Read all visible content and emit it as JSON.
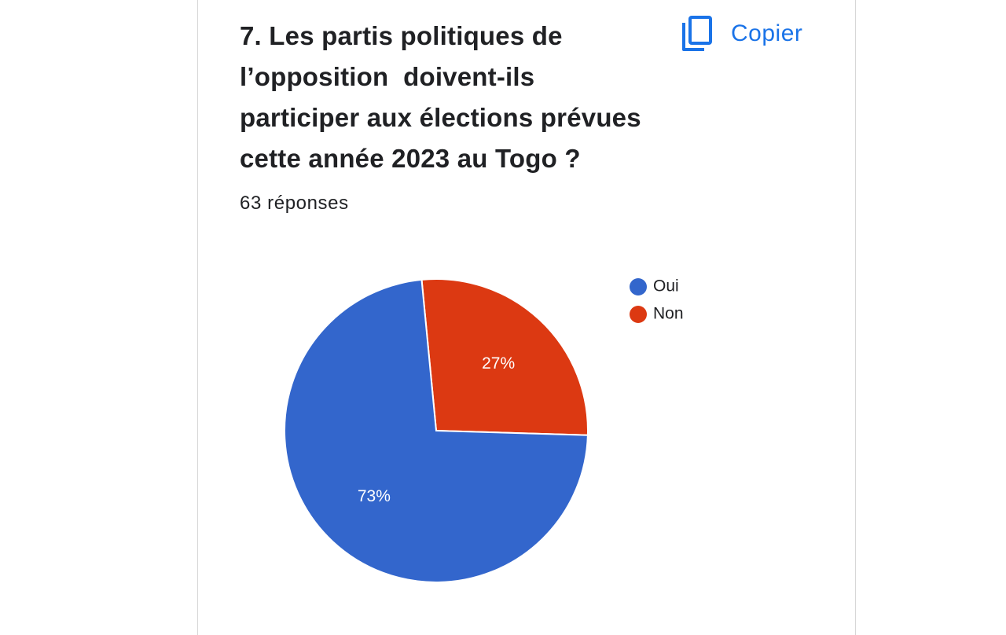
{
  "question": {
    "title": "7. Les partis politiques de l’opposition  doivent-ils participer aux élections prévues cette année 2023 au Togo ?",
    "title_lines": [
      "7. Les partis politiques de",
      "l’opposition  doivent-ils",
      "participer aux élections prévues",
      "cette année 2023 au Togo ?"
    ],
    "responses": "63 réponses"
  },
  "toolbar": {
    "copy_label": "Copier",
    "copy_icon": "copy-icon"
  },
  "chart_data": {
    "type": "pie",
    "title": "",
    "categories": [
      "Oui",
      "Non"
    ],
    "values": [
      73,
      27
    ],
    "labels": [
      "73%",
      "27%"
    ],
    "colors": [
      "#3366cc",
      "#dc3912"
    ],
    "legend_position": "right"
  }
}
